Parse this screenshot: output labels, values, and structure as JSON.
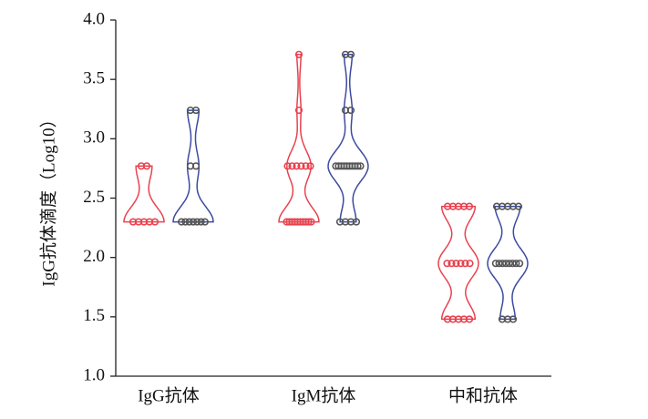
{
  "chart_data": {
    "type": "violin",
    "y_label": "IgG抗体滴度（Log10）",
    "categories": [
      "IgG抗体",
      "IgM抗体",
      "中和抗体"
    ],
    "ylim": [
      1.0,
      4.0
    ],
    "yticks": [
      {
        "value": 1.0,
        "label": "1.0"
      },
      {
        "value": 1.5,
        "label": "1.5"
      },
      {
        "value": 2.0,
        "label": "2.0"
      },
      {
        "value": 2.5,
        "label": "2.5"
      },
      {
        "value": 3.0,
        "label": "3.0"
      },
      {
        "value": 3.5,
        "label": "3.5"
      },
      {
        "value": 4.0,
        "label": "4.0"
      }
    ],
    "series": [
      {
        "color": "#e8424f",
        "values": [
          [
            2.3,
            2.3,
            2.3,
            2.3,
            2.3,
            2.77,
            2.77
          ],
          [
            3.71,
            3.24,
            2.77,
            2.77,
            2.77,
            2.77,
            2.77,
            2.77,
            2.3,
            2.3,
            2.3,
            2.3,
            2.3,
            2.3,
            2.3,
            2.3,
            2.3,
            2.3
          ],
          [
            2.43,
            2.43,
            2.43,
            2.43,
            2.43,
            1.95,
            1.95,
            1.95,
            1.95,
            1.95,
            1.95,
            1.48,
            1.48,
            1.48,
            1.48,
            1.48
          ]
        ]
      },
      {
        "color": "#3c4aa0",
        "values": [
          [
            3.24,
            3.24,
            2.77,
            2.77,
            2.3,
            2.3,
            2.3,
            2.3,
            2.3,
            2.3,
            2.3
          ],
          [
            3.71,
            3.71,
            3.24,
            3.24,
            2.77,
            2.77,
            2.77,
            2.77,
            2.77,
            2.77,
            2.77,
            2.77,
            2.77,
            2.77,
            2.3,
            2.3,
            2.3,
            2.3
          ],
          [
            2.43,
            2.43,
            2.43,
            2.43,
            2.43,
            1.95,
            1.95,
            1.95,
            1.95,
            1.95,
            1.95,
            1.95,
            1.95,
            1.48,
            1.48,
            1.48
          ]
        ]
      }
    ]
  }
}
